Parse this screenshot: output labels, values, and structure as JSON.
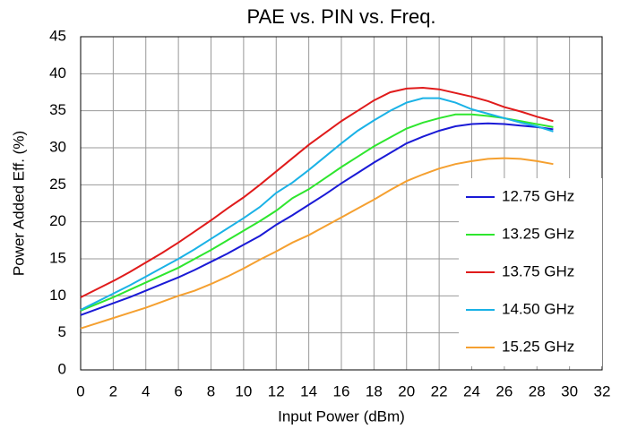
{
  "chart_data": {
    "type": "line",
    "title": "PAE vs. PIN vs. Freq.",
    "xlabel": "Input Power (dBm)",
    "ylabel": "Power Added Eff. (%)",
    "x": [
      0,
      1,
      2,
      3,
      4,
      5,
      6,
      7,
      8,
      9,
      10,
      11,
      12,
      13,
      14,
      15,
      16,
      17,
      18,
      19,
      20,
      21,
      22,
      23,
      24,
      25,
      26,
      27,
      28,
      29
    ],
    "series": [
      {
        "name": "12.75 GHz",
        "color": "#1a1ad6",
        "values": [
          7.4,
          8.2,
          9.0,
          9.8,
          10.7,
          11.6,
          12.5,
          13.5,
          14.6,
          15.7,
          16.9,
          18.1,
          19.6,
          20.9,
          22.3,
          23.7,
          25.2,
          26.6,
          28.0,
          29.3,
          30.6,
          31.5,
          32.3,
          32.9,
          33.2,
          33.3,
          33.2,
          33.0,
          32.8,
          32.5
        ]
      },
      {
        "name": "13.25 GHz",
        "color": "#2ee62e",
        "values": [
          8.0,
          8.9,
          9.8,
          10.8,
          11.8,
          12.8,
          13.8,
          15.0,
          16.2,
          17.5,
          18.8,
          20.1,
          21.5,
          23.2,
          24.4,
          25.9,
          27.4,
          28.8,
          30.2,
          31.4,
          32.6,
          33.4,
          34.0,
          34.5,
          34.5,
          34.3,
          34.0,
          33.6,
          33.2,
          32.8
        ]
      },
      {
        "name": "13.75 GHz",
        "color": "#e01b1b",
        "values": [
          9.8,
          10.9,
          12.0,
          13.2,
          14.5,
          15.8,
          17.2,
          18.7,
          20.2,
          21.8,
          23.3,
          25.0,
          26.8,
          28.6,
          30.4,
          32.0,
          33.6,
          35.0,
          36.4,
          37.5,
          38.0,
          38.1,
          37.9,
          37.4,
          36.9,
          36.3,
          35.5,
          34.9,
          34.2,
          33.6
        ]
      },
      {
        "name": "14.50 GHz",
        "color": "#1ab2e6",
        "values": [
          8.1,
          9.2,
          10.3,
          11.4,
          12.6,
          13.8,
          15.0,
          16.3,
          17.7,
          19.1,
          20.5,
          22.0,
          23.9,
          25.3,
          27.0,
          28.8,
          30.6,
          32.3,
          33.7,
          35.0,
          36.1,
          36.7,
          36.7,
          36.1,
          35.2,
          34.6,
          34.0,
          33.4,
          32.9,
          32.2
        ]
      },
      {
        "name": "15.25 GHz",
        "color": "#f5a030",
        "values": [
          5.6,
          6.3,
          7.0,
          7.7,
          8.4,
          9.2,
          10.0,
          10.7,
          11.6,
          12.6,
          13.7,
          14.9,
          16.0,
          17.2,
          18.2,
          19.4,
          20.6,
          21.8,
          23.0,
          24.3,
          25.5,
          26.4,
          27.2,
          27.8,
          28.2,
          28.5,
          28.6,
          28.5,
          28.2,
          27.8
        ]
      }
    ],
    "xlim": [
      0,
      32
    ],
    "xticks": [
      0,
      2,
      4,
      6,
      8,
      10,
      12,
      14,
      16,
      18,
      20,
      22,
      24,
      26,
      28,
      30,
      32
    ],
    "ylim": [
      0,
      45
    ],
    "yticks": [
      0,
      5,
      10,
      15,
      20,
      25,
      30,
      35,
      40,
      45
    ],
    "grid": true,
    "legend": "lower right"
  }
}
